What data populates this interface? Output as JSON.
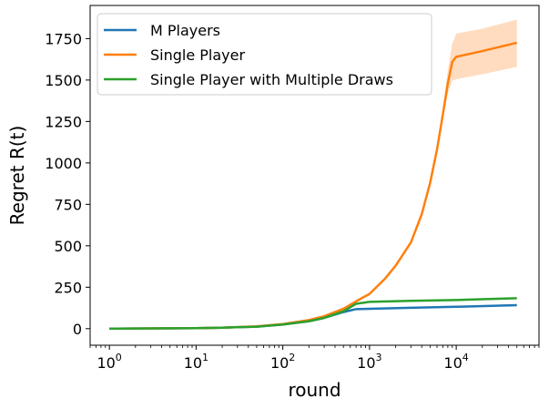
{
  "chart_data": {
    "type": "line",
    "xscale": "log",
    "xlabel": "round",
    "ylabel": "Regret R(t)",
    "xlim": [
      0.6,
      90000
    ],
    "ylim": [
      -100,
      1950
    ],
    "xticks": [
      {
        "value": 1,
        "base": "10",
        "exp": "0"
      },
      {
        "value": 10,
        "base": "10",
        "exp": "1"
      },
      {
        "value": 100,
        "base": "10",
        "exp": "2"
      },
      {
        "value": 1000,
        "base": "10",
        "exp": "3"
      },
      {
        "value": 10000,
        "base": "10",
        "exp": "4"
      }
    ],
    "yticks": [
      0,
      250,
      500,
      750,
      1000,
      1250,
      1500,
      1750
    ],
    "legend": "upper-left",
    "grid": false,
    "series": [
      {
        "name": "M Players",
        "color": "#1f77b4",
        "x": [
          1,
          10,
          20,
          50,
          100,
          200,
          300,
          500,
          700,
          1000,
          3000,
          10000,
          50000
        ],
        "y": [
          0,
          3,
          6,
          12,
          25,
          45,
          65,
          100,
          118,
          120,
          126,
          132,
          142
        ]
      },
      {
        "name": "Single Player",
        "color": "#ff7f0e",
        "band_color": "#ffdcbf",
        "x": [
          1,
          10,
          20,
          50,
          100,
          200,
          300,
          500,
          700,
          1000,
          1500,
          2000,
          3000,
          4000,
          5000,
          6000,
          7000,
          8000,
          9000,
          10000,
          20000,
          50000
        ],
        "y": [
          0,
          3,
          6,
          14,
          28,
          52,
          75,
          120,
          165,
          210,
          300,
          380,
          520,
          690,
          880,
          1080,
          1290,
          1480,
          1610,
          1640,
          1675,
          1725
        ],
        "lower": [
          0,
          3,
          6,
          14,
          28,
          52,
          75,
          120,
          165,
          210,
          300,
          380,
          520,
          690,
          880,
          1070,
          1260,
          1420,
          1495,
          1505,
          1535,
          1580
        ],
        "upper": [
          0,
          3,
          6,
          14,
          28,
          52,
          75,
          120,
          165,
          210,
          300,
          380,
          520,
          690,
          880,
          1100,
          1330,
          1560,
          1720,
          1780,
          1810,
          1865
        ]
      },
      {
        "name": "Single Player with Multiple Draws",
        "color": "#2ca02c",
        "x": [
          1,
          10,
          20,
          50,
          100,
          200,
          300,
          500,
          700,
          1000,
          3000,
          10000,
          50000
        ],
        "y": [
          0,
          3,
          6,
          12,
          25,
          45,
          65,
          105,
          150,
          162,
          168,
          173,
          184
        ]
      }
    ]
  }
}
